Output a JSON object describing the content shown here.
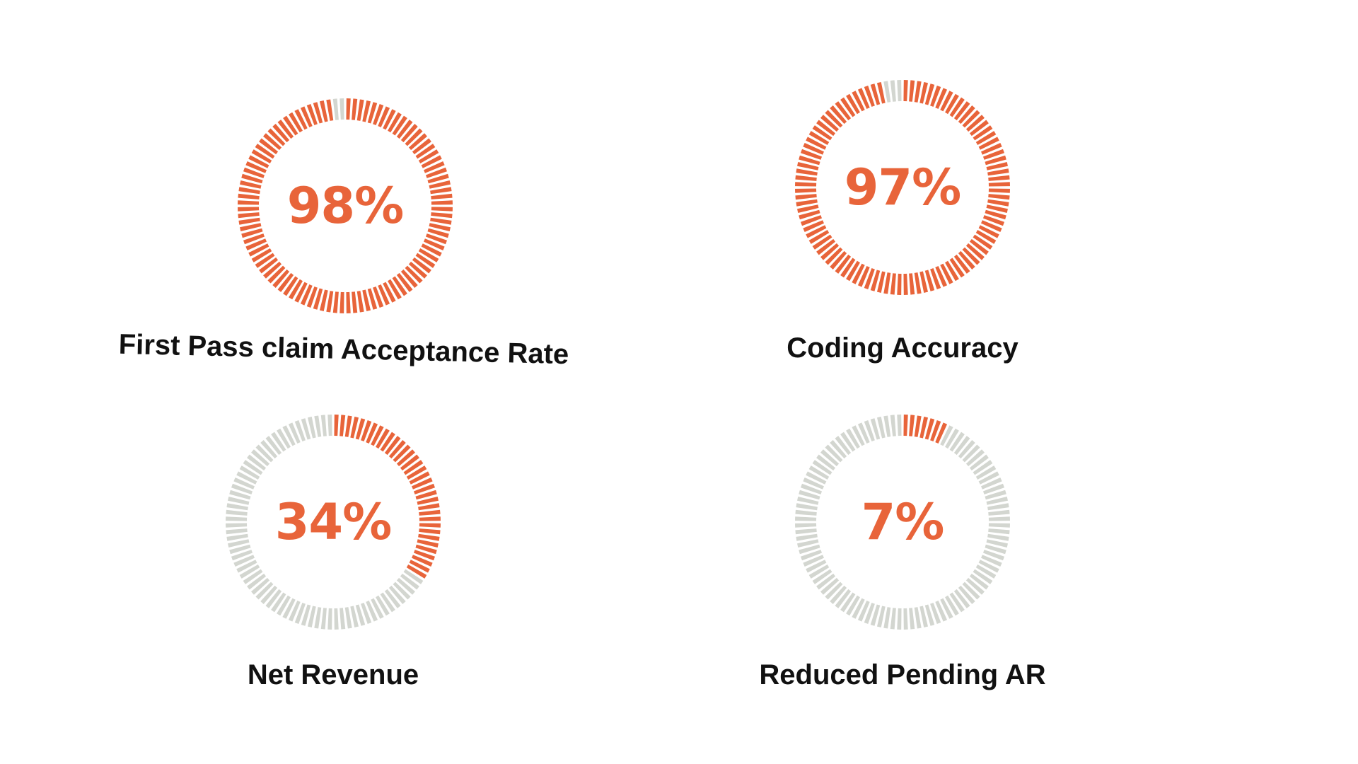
{
  "colors": {
    "filled": "#e8643a",
    "empty": "#d3d6d0",
    "percent_text": "#e8643a",
    "label_text": "#111111"
  },
  "chart_data": [
    {
      "type": "pie",
      "label": "First Pass claim Acceptance Rate",
      "value": 98,
      "display": "98%"
    },
    {
      "type": "pie",
      "label": "Coding Accuracy",
      "value": 97,
      "display": "97%"
    },
    {
      "type": "pie",
      "label": "Net Revenue",
      "value": 34,
      "display": "34%"
    },
    {
      "type": "pie",
      "label": "Reduced Pending AR",
      "value": 7,
      "display": "7%"
    }
  ]
}
